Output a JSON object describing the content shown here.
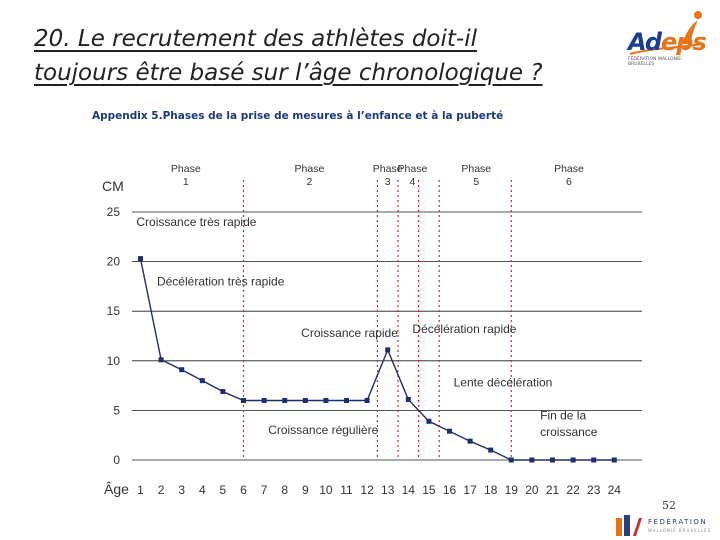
{
  "slide": {
    "title_line1": "20. Le recrutement des athlètes doit-il",
    "title_line2": "toujours être basé sur l’âge chronologique ?",
    "page_number": "52"
  },
  "logo": {
    "name_part1": "Ad",
    "name_part2": "eps",
    "subtitle": "Fédération Wallonie-Bruxelles",
    "brand_blue": "#1b3f8f",
    "brand_orange": "#e8731a"
  },
  "footer_logo": {
    "name": "FÉDÉRATION",
    "subtitle": "WALLONIE-BRUXELLES"
  },
  "chart_data": {
    "type": "line",
    "title": "Appendix 5.Phases de la prise de mesures à l’enfance et à la puberté",
    "ylabel": "CM",
    "xlabel": "Âge",
    "ylim": [
      0,
      25
    ],
    "yticks": [
      0,
      5,
      10,
      15,
      20,
      25
    ],
    "grid": true,
    "x": [
      1,
      2,
      3,
      4,
      5,
      6,
      7,
      8,
      9,
      10,
      11,
      12,
      13,
      14,
      15,
      16,
      17,
      18,
      19,
      20,
      21,
      22,
      23,
      24
    ],
    "series": [
      {
        "values": [
          20.3,
          10.1,
          9.1,
          8.0,
          6.9,
          6.0,
          6.0,
          6.0,
          6.0,
          6.0,
          6.0,
          6.0,
          11.1,
          6.1,
          3.9,
          2.9,
          1.9,
          1.0,
          0.0,
          0.0,
          0.0,
          0.0,
          0.0,
          0.0
        ]
      }
    ],
    "phase_boundaries": [
      6,
      12.5,
      13.5,
      14.5,
      15.5,
      19
    ],
    "phases": [
      {
        "label": "Phase",
        "number": "1",
        "center": 3.2
      },
      {
        "label": "Phase",
        "number": "2",
        "center": 9.2
      },
      {
        "label": "Phase",
        "number": "3",
        "center": 13.0
      },
      {
        "label": "Phase",
        "number": "4",
        "center": 14.2
      },
      {
        "label": "Phase",
        "number": "5",
        "center": 17.3
      },
      {
        "label": "Phase",
        "number": "6",
        "center": 21.8
      }
    ],
    "annotations": [
      {
        "text": "Croissance très rapide",
        "x": 0.8,
        "y": 23.6
      },
      {
        "text": "Décélération très rapide",
        "x": 1.8,
        "y": 17.6
      },
      {
        "text": "Croissance rapide",
        "x": 8.8,
        "y": 12.4
      },
      {
        "text": "Décélération rapide",
        "x": 14.2,
        "y": 12.8
      },
      {
        "text": "Lente décélération",
        "x": 16.2,
        "y": 7.4
      },
      {
        "text": "Croissance régulière",
        "x": 7.2,
        "y": 2.6
      },
      {
        "text": "Fin de la",
        "x": 20.4,
        "y": 4.1
      },
      {
        "text": "croissance",
        "x": 20.4,
        "y": 2.4
      }
    ],
    "colors": {
      "line": "#1f2f6e",
      "grid": "#1a1a1a",
      "phase_divider": "#d12a2a",
      "text": "#333333"
    }
  }
}
